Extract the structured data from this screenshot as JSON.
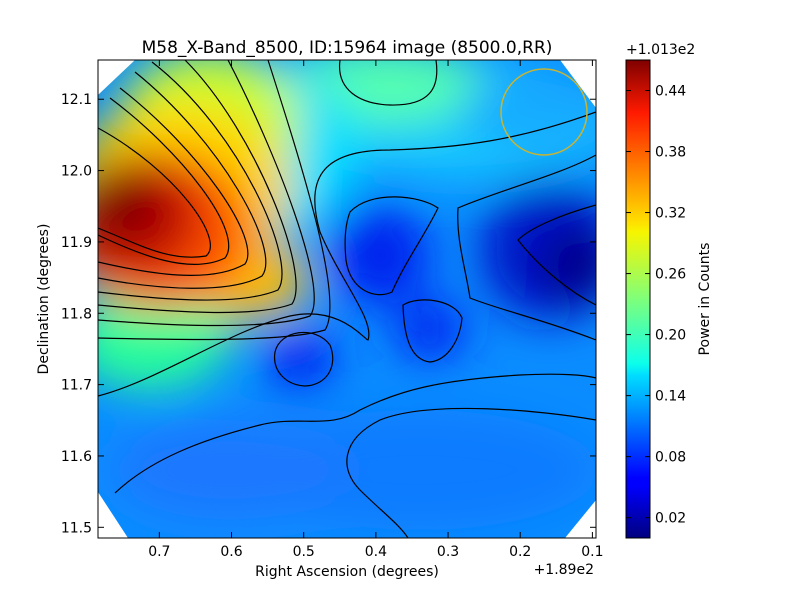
{
  "chart_data": {
    "type": "heatmap",
    "title": "M58_X-Band_8500, ID:15964 image (8500.0,RR)",
    "xlabel": "Right Ascension (degrees)",
    "ylabel": "Declination (degrees)",
    "x_offset_label": "+1.89e2",
    "x_ticks": [
      "0.7",
      "0.6",
      "0.5",
      "0.4",
      "0.3",
      "0.2",
      "0.1"
    ],
    "x_tick_values": [
      0.7,
      0.6,
      0.5,
      0.4,
      0.3,
      0.2,
      0.1
    ],
    "xlim": [
      0.785,
      0.095
    ],
    "y_ticks": [
      "12.1",
      "12.0",
      "11.9",
      "11.8",
      "11.7",
      "11.6",
      "11.5"
    ],
    "y_tick_values": [
      12.1,
      12.0,
      11.9,
      11.8,
      11.7,
      11.6,
      11.5
    ],
    "ylim": [
      11.485,
      12.155
    ],
    "colorbar": {
      "label": "Power in Counts",
      "offset_label": "+1.013e2",
      "ticks": [
        "0.44",
        "0.38",
        "0.32",
        "0.26",
        "0.20",
        "0.14",
        "0.08",
        "0.02"
      ],
      "tick_values": [
        0.44,
        0.38,
        0.32,
        0.26,
        0.2,
        0.14,
        0.08,
        0.02
      ],
      "range": [
        0.0,
        0.47
      ],
      "colormap": "jet"
    },
    "beam_circle": {
      "ra": 0.16,
      "dec": 12.08,
      "radius_deg": 0.06,
      "color": "#c8b432"
    },
    "features": [
      {
        "kind": "peak",
        "ra": 0.75,
        "dec": 11.93,
        "value": 0.46
      },
      {
        "kind": "minimum",
        "ra": 0.11,
        "dec": 11.86,
        "value": 0.0
      },
      {
        "kind": "minimum",
        "ra": 0.38,
        "dec": 11.9,
        "value": 0.06
      },
      {
        "kind": "minimum",
        "ra": 0.5,
        "dec": 11.73,
        "value": 0.07
      },
      {
        "kind": "minimum",
        "ra": 0.32,
        "dec": 11.78,
        "value": 0.07
      },
      {
        "kind": "local-max",
        "ra": 0.33,
        "dec": 12.1,
        "value": 0.2
      }
    ],
    "grid": false
  }
}
